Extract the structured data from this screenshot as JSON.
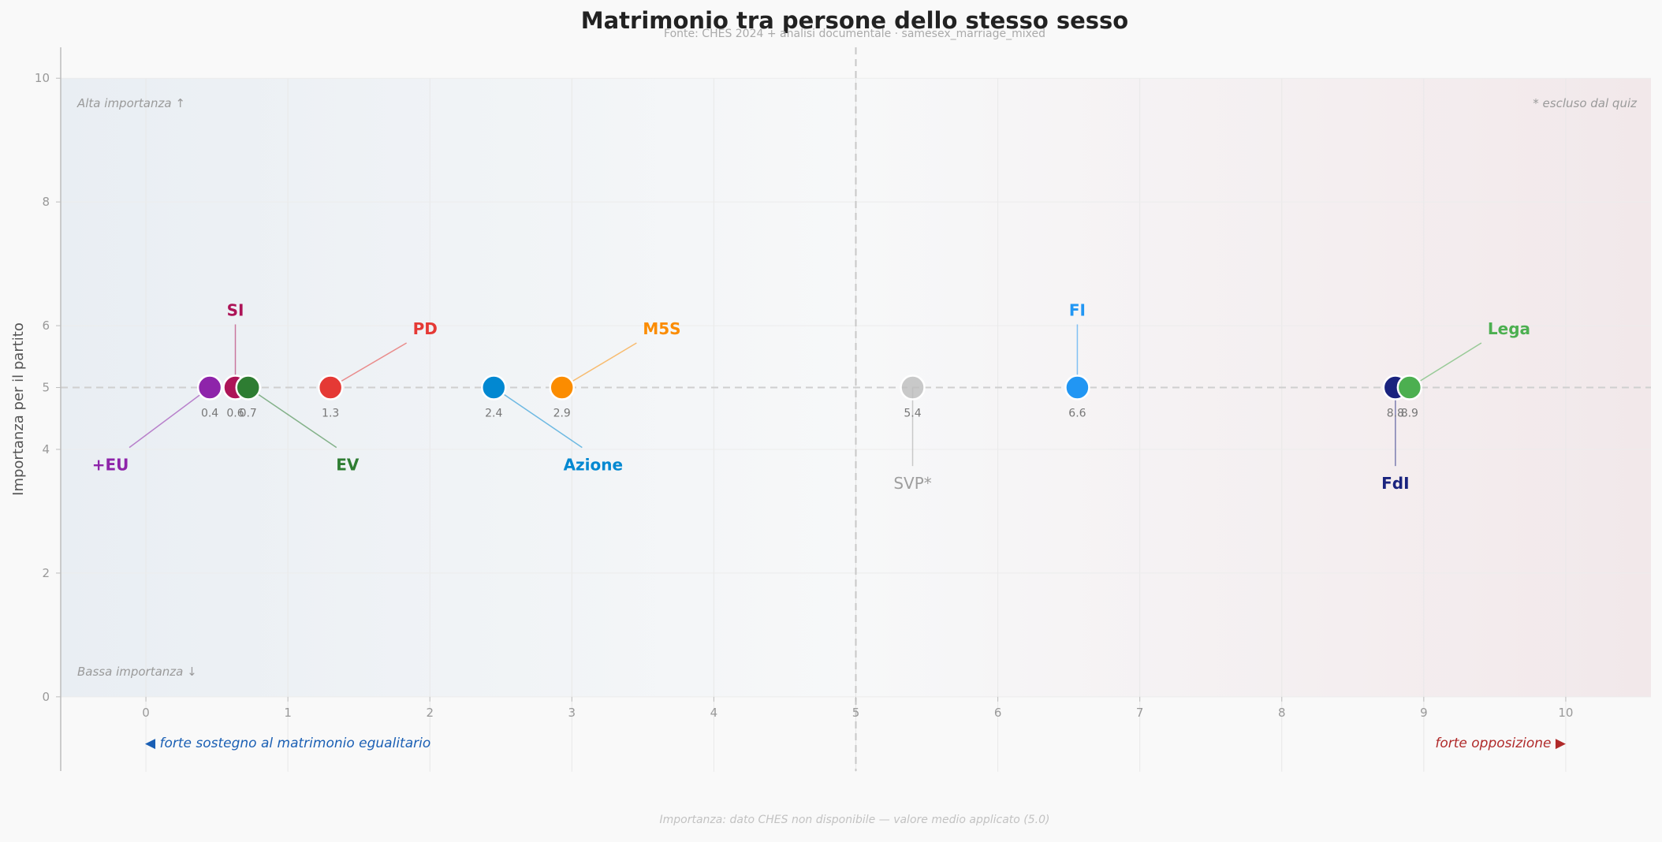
{
  "chart_data": {
    "type": "scatter",
    "title": "Matrimonio tra persone dello stesso sesso",
    "subtitle": "Fonte: CHES 2024 + analisi documentale  ·  samesex_marriage_mixed",
    "xlabel": "",
    "ylabel": "Importanza per il partito",
    "xlim": [
      -0.6,
      10.6
    ],
    "ylim": [
      -1.2,
      10.5
    ],
    "xticks": [
      0,
      1,
      2,
      3,
      4,
      5,
      6,
      7,
      8,
      9,
      10
    ],
    "yticks": [
      0,
      2,
      4,
      5,
      6,
      8,
      10
    ],
    "midline_x": 5,
    "midline_y": 5,
    "grid": true,
    "corner_labels": {
      "top_left": "Alta importanza ↑",
      "bottom_left": "Bassa importanza ↓",
      "top_right": "* escluso dal quiz"
    },
    "direction_labels": {
      "left": "◀  forte sostegno al matrimonio egualitario",
      "right": "forte opposizione  ▶"
    },
    "footnote": "Importanza: dato CHES non disponibile — valore medio applicato (5.0)",
    "colors": {
      "left_zone": "#1a5fb4",
      "right_zone": "#b02a2a",
      "midline": "#c8c8c8",
      "grid": "#e8e8e8"
    },
    "points": [
      {
        "party": "+EU",
        "x": 0.45,
        "y": 5,
        "value_label": "0.4",
        "color": "#8e24aa",
        "label_x": -0.25,
        "label_y": 3.75,
        "label_anchor": "middle",
        "excluded": false
      },
      {
        "party": "SI",
        "x": 0.63,
        "y": 5,
        "value_label": "0.6",
        "color": "#ad1457",
        "label_x": 0.63,
        "label_y": 6.25,
        "label_anchor": "middle",
        "excluded": false
      },
      {
        "party": "EV",
        "x": 0.72,
        "y": 5,
        "value_label": "0.7",
        "color": "#2e7d32",
        "label_x": 1.42,
        "label_y": 3.75,
        "label_anchor": "middle",
        "excluded": false
      },
      {
        "party": "PD",
        "x": 1.3,
        "y": 5,
        "value_label": "1.3",
        "color": "#e53935",
        "label_x": 1.88,
        "label_y": 5.95,
        "label_anchor": "start",
        "excluded": false
      },
      {
        "party": "Azione",
        "x": 2.45,
        "y": 5,
        "value_label": "2.4",
        "color": "#0288d1",
        "label_x": 3.15,
        "label_y": 3.75,
        "label_anchor": "middle",
        "excluded": false
      },
      {
        "party": "M5S",
        "x": 2.93,
        "y": 5,
        "value_label": "2.9",
        "color": "#fb8c00",
        "label_x": 3.5,
        "label_y": 5.95,
        "label_anchor": "start",
        "excluded": false
      },
      {
        "party": "SVP*",
        "x": 5.4,
        "y": 5,
        "value_label": "5.4",
        "color": "#bdbdbd",
        "label_x": 5.4,
        "label_y": 3.45,
        "label_anchor": "middle",
        "excluded": true
      },
      {
        "party": "FI",
        "x": 6.56,
        "y": 5,
        "value_label": "6.6",
        "color": "#2196f3",
        "label_x": 6.56,
        "label_y": 6.25,
        "label_anchor": "middle",
        "excluded": false
      },
      {
        "party": "FdI",
        "x": 8.8,
        "y": 5,
        "value_label": "8.8",
        "color": "#1a237e",
        "label_x": 8.8,
        "label_y": 3.45,
        "label_anchor": "middle",
        "excluded": false
      },
      {
        "party": "Lega",
        "x": 8.9,
        "y": 5,
        "value_label": "8.9",
        "color": "#4caf50",
        "label_x": 9.45,
        "label_y": 5.95,
        "label_anchor": "start",
        "excluded": false
      }
    ]
  }
}
